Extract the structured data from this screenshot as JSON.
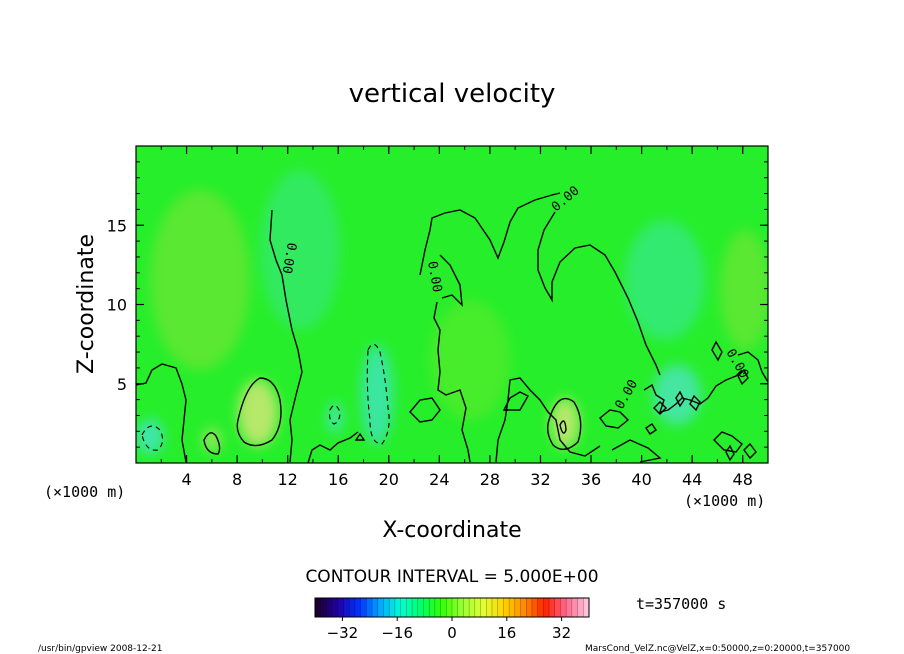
{
  "chart_data": {
    "type": "contour",
    "title": "vertical velocity",
    "xlabel": "X-coordinate",
    "ylabel": "Z-coordinate",
    "x_unit_left": "(×1000 m)",
    "x_unit_right": "(×1000 m)",
    "xlim": [
      0,
      50
    ],
    "ylim": [
      0,
      20
    ],
    "x_ticks": [
      4,
      8,
      12,
      16,
      20,
      24,
      28,
      32,
      36,
      40,
      44,
      48
    ],
    "y_ticks": [
      5,
      10,
      15
    ],
    "contour_interval_text": "CONTOUR INTERVAL = 5.000E+00",
    "contour_labels": [
      "0.00",
      "0.00",
      "0.00",
      "0.00",
      "0.00"
    ],
    "colorbar": {
      "range": [
        -40,
        40
      ],
      "ticks": [
        -32,
        -16,
        0,
        16,
        32
      ],
      "colors": [
        "#1a0030",
        "#2200aa",
        "#0033ff",
        "#00a6ff",
        "#00ffd5",
        "#00ff66",
        "#33ff00",
        "#99ff33",
        "#dfff33",
        "#ffd400",
        "#ff8a00",
        "#ff2200",
        "#ff6688",
        "#ffc0d8"
      ]
    },
    "colorbar_range": [
      -40,
      40
    ],
    "background_color": "#26ee2a",
    "time_label": "t=357000 s",
    "footer_left": "/usr/bin/gpview   2008-12-21",
    "footer_right": "MarsCond_VelZ.nc@VelZ,x=0:50000,z=0:20000,t=357000"
  }
}
